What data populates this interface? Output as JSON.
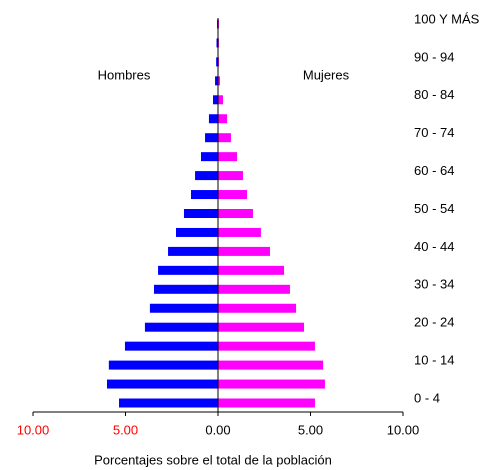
{
  "chart_data": {
    "type": "pyramid",
    "xlabel": "Porcentajes sobre el total de la población",
    "categories": [
      "0 - 4",
      null,
      "10 - 14",
      null,
      "20 - 24",
      null,
      "30 - 34",
      null,
      "40 - 44",
      null,
      "50 - 54",
      null,
      "60 - 64",
      null,
      "70 - 74",
      null,
      "80 - 84",
      null,
      "90 - 94",
      null,
      "100 Y MÁS"
    ],
    "series": [
      {
        "name": "Hombres",
        "color": "#0000ff",
        "values": [
          5.35,
          6.0,
          5.9,
          5.03,
          3.95,
          3.68,
          3.46,
          3.24,
          2.7,
          2.27,
          1.84,
          1.46,
          1.24,
          0.92,
          0.7,
          0.49,
          0.27,
          0.16,
          0.1,
          0.08,
          0.05
        ]
      },
      {
        "name": "Mujeres",
        "color": "#ff00ff",
        "values": [
          5.24,
          5.78,
          5.68,
          5.24,
          4.65,
          4.22,
          3.89,
          3.57,
          2.81,
          2.32,
          1.89,
          1.57,
          1.35,
          1.03,
          0.7,
          0.49,
          0.27,
          0.11,
          0.05,
          0.05,
          0.05
        ]
      }
    ],
    "xlim": [
      0,
      10
    ],
    "xticks_left": [
      {
        "value": 10,
        "label": "10.00"
      },
      {
        "value": 5,
        "label": "5.00"
      }
    ],
    "xticks_right": [
      {
        "value": 0,
        "label": "0.00"
      },
      {
        "value": 5,
        "label": "5.00"
      },
      {
        "value": 10,
        "label": "10.00"
      }
    ],
    "left_tick_color": "#ff0000"
  }
}
